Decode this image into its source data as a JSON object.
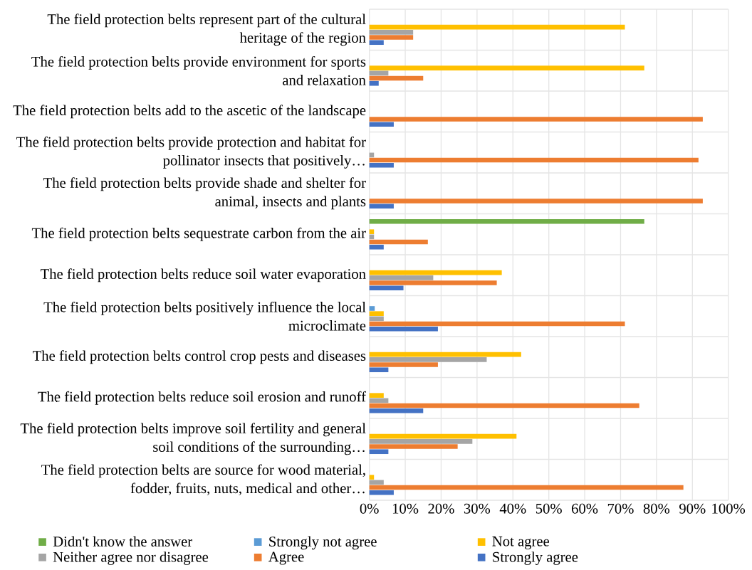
{
  "chart_data": {
    "type": "bar",
    "orientation": "horizontal",
    "categories": [
      "The field protection belts represent part of the cultural heritage of the region",
      "The field protection belts provide environment for sports and relaxation",
      "The field protection belts add to the ascetic of the landscape",
      "The field protection belts provide protection and habitat for pollinator insects that positively…",
      "The field protection belts provide shade and shelter for animal, insects and plants",
      "The field protection belts sequestrate carbon from the air",
      "The field protection belts reduce soil water evaporation",
      "The field protection belts positively influence the local microclimate",
      "The field protection belts control crop pests and diseases",
      "The field protection belts reduce soil erosion and runoff",
      "The field protection belts improve soil fertility and general soil conditions of the surrounding…",
      "The field protection belts are source for wood material, fodder, fruits, nuts, medical and other…"
    ],
    "series": [
      {
        "name": "Didn't know the answer",
        "color": "#70ad47",
        "values": [
          null,
          null,
          null,
          null,
          null,
          76.6,
          null,
          null,
          null,
          null,
          null,
          null
        ]
      },
      {
        "name": "Strongly not agree",
        "color": "#5b9bd5",
        "values": [
          null,
          null,
          null,
          null,
          null,
          null,
          null,
          1.5,
          null,
          null,
          null,
          null
        ]
      },
      {
        "name": "Not agree",
        "color": "#ffc000",
        "values": [
          71.2,
          76.6,
          null,
          null,
          null,
          1.3,
          36.9,
          4.0,
          42.3,
          4.0,
          41.0,
          1.3
        ]
      },
      {
        "name": "Neither agree nor disagree",
        "color": "#a5a5a5",
        "values": [
          12.2,
          5.3,
          null,
          1.3,
          null,
          1.3,
          17.8,
          4.0,
          32.7,
          5.3,
          28.7,
          4.0
        ]
      },
      {
        "name": "Agree",
        "color": "#ed7d31",
        "values": [
          12.2,
          15.0,
          92.9,
          91.7,
          92.9,
          16.3,
          35.5,
          71.2,
          19.1,
          75.2,
          24.6,
          87.5
        ]
      },
      {
        "name": "Strongly agree",
        "color": "#4472c4",
        "values": [
          4.0,
          2.6,
          6.8,
          6.8,
          6.8,
          4.0,
          9.5,
          19.1,
          5.3,
          15.0,
          5.3,
          6.8
        ]
      }
    ],
    "xlim": [
      0,
      100
    ],
    "xticks": [
      {
        "value": 0,
        "label": "0%"
      },
      {
        "value": 10,
        "label": "10%"
      },
      {
        "value": 20,
        "label": "20%"
      },
      {
        "value": 30,
        "label": "30%"
      },
      {
        "value": 40,
        "label": "40%"
      },
      {
        "value": 50,
        "label": "50%"
      },
      {
        "value": 60,
        "label": "60%"
      },
      {
        "value": 70,
        "label": "70%"
      },
      {
        "value": 80,
        "label": "80%"
      },
      {
        "value": 90,
        "label": "90%"
      },
      {
        "value": 100,
        "label": "100%"
      }
    ],
    "grid": true,
    "legend": "bottom"
  }
}
